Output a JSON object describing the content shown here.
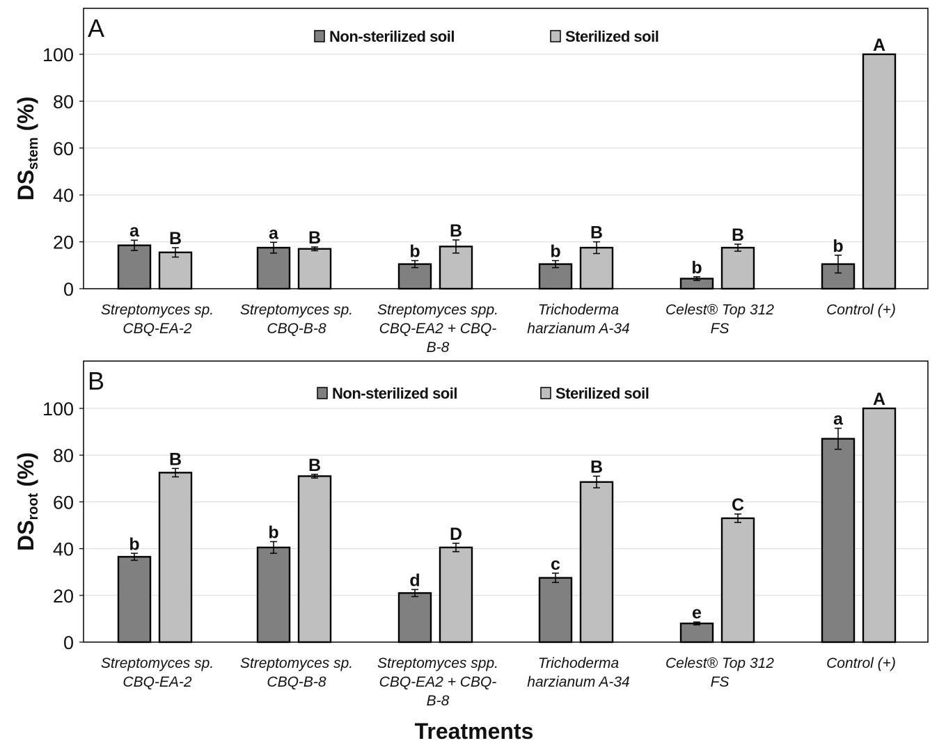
{
  "chart_data": [
    {
      "type": "bar",
      "panel": "A",
      "ylabel_main": "DS",
      "ylabel_sub": "stem",
      "ylabel_suffix": " (%)",
      "ylim": [
        0,
        100
      ],
      "yticks": [
        0,
        20,
        40,
        60,
        80,
        100
      ],
      "grid": true,
      "legend_position": "top-center",
      "categories": [
        [
          "Streptomyces sp.",
          "CBQ-EA-2"
        ],
        [
          "Streptomyces sp.",
          "CBQ-B-8"
        ],
        [
          "Streptomyces spp.",
          "CBQ-EA2 + CBQ-",
          "B-8"
        ],
        [
          "Trichoderma",
          "harzianum A-34"
        ],
        [
          "Celest® Top 312",
          "FS"
        ],
        [
          "Control (+)"
        ]
      ],
      "series": [
        {
          "name": "Non-sterilized soil",
          "color": "#808080",
          "values": [
            18.5,
            17.5,
            10.5,
            10.5,
            4.3,
            10.5
          ],
          "errors": [
            2.2,
            2.3,
            1.5,
            1.5,
            0.8,
            3.8
          ],
          "letters": [
            "a",
            "a",
            "b",
            "b",
            "b",
            "b"
          ]
        },
        {
          "name": "Sterilized soil",
          "color": "#bfbfbf",
          "values": [
            15.5,
            17.0,
            18.0,
            17.5,
            17.5,
            100
          ],
          "errors": [
            2.0,
            0.8,
            2.8,
            2.5,
            1.5,
            0
          ],
          "letters": [
            "B",
            "B",
            "B",
            "B",
            "B",
            "A"
          ]
        }
      ]
    },
    {
      "type": "bar",
      "panel": "B",
      "ylabel_main": "DS",
      "ylabel_sub": "root",
      "ylabel_suffix": " (%)",
      "ylim": [
        0,
        100
      ],
      "yticks": [
        0,
        20,
        40,
        60,
        80,
        100
      ],
      "grid": true,
      "legend_position": "top-center",
      "categories": [
        [
          "Streptomyces sp.",
          "CBQ-EA-2"
        ],
        [
          "Streptomyces sp.",
          "CBQ-B-8"
        ],
        [
          "Streptomyces spp.",
          "CBQ-EA2 + CBQ-",
          "B-8"
        ],
        [
          "Trichoderma",
          "harzianum A-34"
        ],
        [
          "Celest® Top 312",
          "FS"
        ],
        [
          "Control (+)"
        ]
      ],
      "series": [
        {
          "name": "Non-sterilized soil",
          "color": "#808080",
          "values": [
            36.5,
            40.5,
            21.0,
            27.5,
            8.0,
            87.0
          ],
          "errors": [
            1.5,
            2.5,
            1.5,
            2.0,
            0.6,
            4.5
          ],
          "letters": [
            "b",
            "b",
            "d",
            "c",
            "e",
            "a"
          ]
        },
        {
          "name": "Sterilized soil",
          "color": "#bfbfbf",
          "values": [
            72.5,
            71.0,
            40.5,
            68.5,
            53.0,
            100
          ],
          "errors": [
            1.8,
            0.8,
            1.8,
            2.5,
            1.8,
            0
          ],
          "letters": [
            "B",
            "B",
            "D",
            "B",
            "C",
            "A"
          ]
        }
      ]
    }
  ],
  "xlabel": "Treatments"
}
